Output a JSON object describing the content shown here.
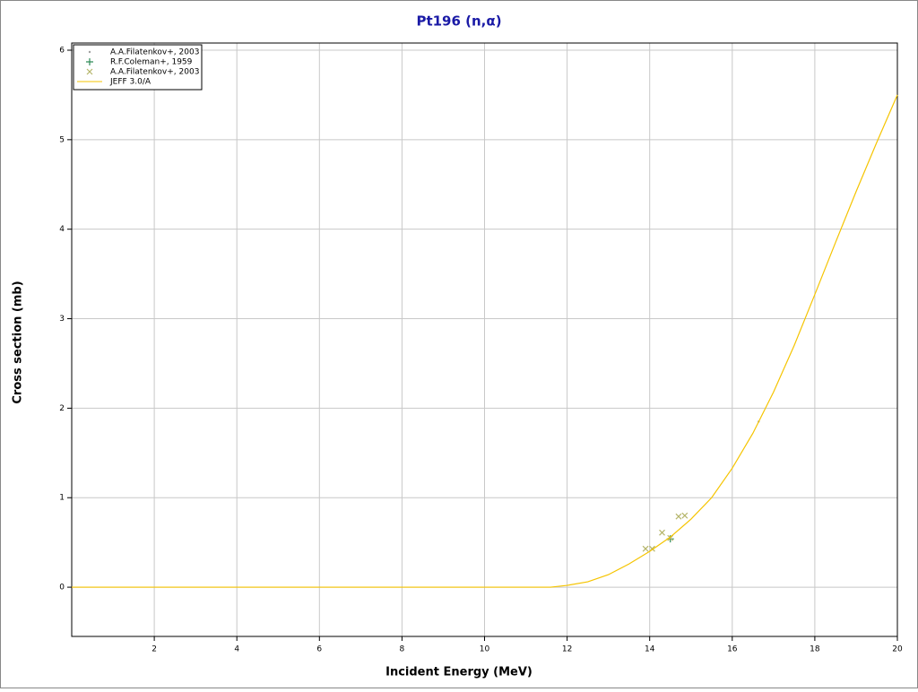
{
  "chart_data": {
    "type": "scatter",
    "title": "Pt196 (n,α)",
    "x_label": "Incident Energy (MeV)",
    "y_label": "Cross section (mb)",
    "xlim": [
      0,
      20
    ],
    "ylim": [
      -0.55,
      6.08
    ],
    "xticks": [
      2,
      4,
      6,
      8,
      10,
      12,
      14,
      16,
      18,
      20
    ],
    "yticks": [
      0,
      1,
      2,
      3,
      4,
      5,
      6
    ],
    "grid": true,
    "legend": "top-left",
    "series": [
      {
        "name": "A.A.Filatenkov+, 2003",
        "marker": "dot",
        "color": "#a0a0a0",
        "x": [
          16.64
        ],
        "y": [
          1.85
        ]
      },
      {
        "name": "R.F.Coleman+, 1959",
        "marker": "plus",
        "color": "#2e8b57",
        "x": [
          14.5
        ],
        "y": [
          0.54
        ]
      },
      {
        "name": "A.A.Filatenkov+, 2003",
        "marker": "x",
        "color": "#b5b56a",
        "x": [
          13.9,
          14.06,
          14.3,
          14.5,
          14.7,
          14.85
        ],
        "y": [
          0.43,
          0.43,
          0.61,
          0.55,
          0.79,
          0.8
        ]
      },
      {
        "name": "JEFF 3.0/A",
        "marker": "line",
        "color": "#f5c400",
        "x": [
          0,
          11.6,
          12,
          12.5,
          13,
          13.5,
          14,
          14.5,
          15,
          15.5,
          16,
          16.5,
          17,
          17.5,
          18,
          18.5,
          19,
          19.5,
          20
        ],
        "y": [
          0,
          0,
          0.02,
          0.06,
          0.14,
          0.26,
          0.4,
          0.56,
          0.76,
          1.0,
          1.33,
          1.72,
          2.18,
          2.7,
          3.27,
          3.85,
          4.42,
          4.97,
          5.5
        ]
      }
    ]
  }
}
